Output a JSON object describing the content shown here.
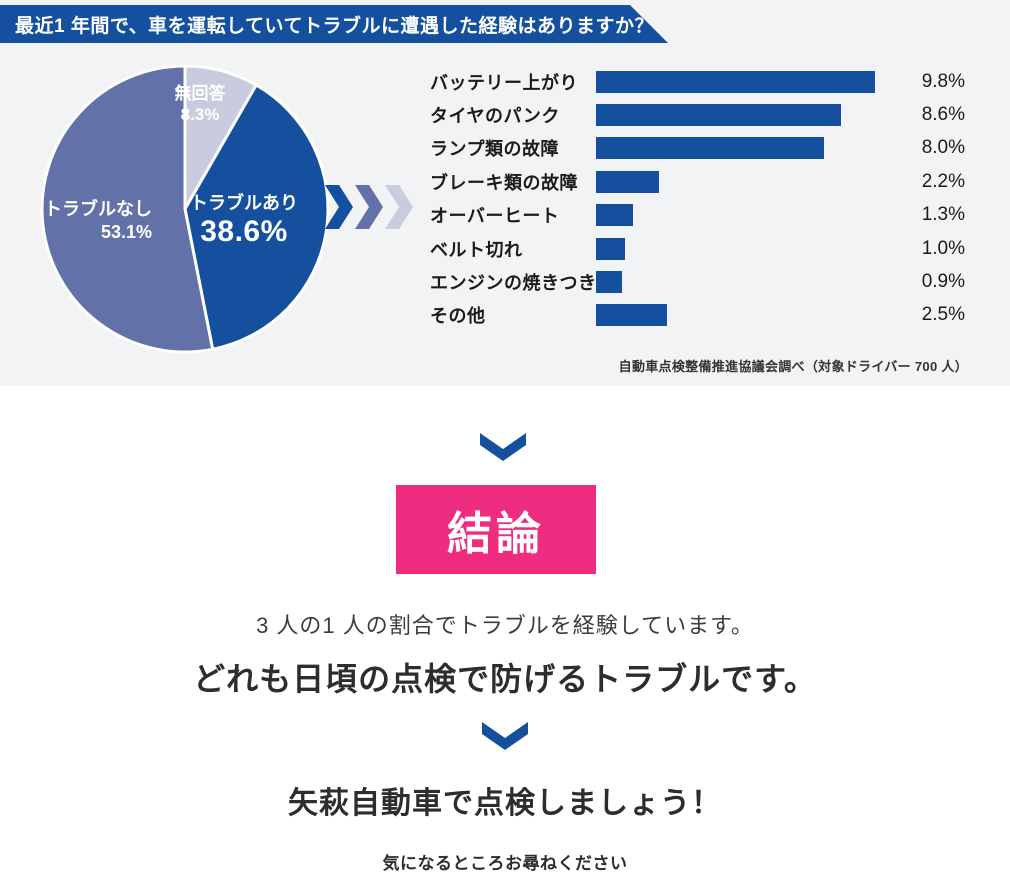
{
  "header": {
    "title": "最近1 年間で、車を運転していてトラブルに遭遇した経験はありますか？"
  },
  "colors": {
    "primary_blue": "#14509e",
    "slate_purple": "#6272a8",
    "lavender": "#c9ccdf",
    "accent_pink": "#ee2d81",
    "section_bg": "#f2f3f4"
  },
  "chart_data": [
    {
      "type": "pie",
      "title": "最近1年間で、車を運転していてトラブルに遭遇した経験はありますか？",
      "unit": "%",
      "start_angle_deg": 0,
      "direction": "clockwise_from_top",
      "slices": [
        {
          "label": "無回答",
          "value": 8.3,
          "display": "8.3%",
          "color": "#c9ccdf"
        },
        {
          "label": "トラブルあり",
          "value": 38.6,
          "display": "38.6%",
          "color": "#14509e"
        },
        {
          "label": "トラブルなし",
          "value": 53.1,
          "display": "53.1%",
          "color": "#6272a8"
        }
      ]
    },
    {
      "type": "bar",
      "orientation": "horizontal",
      "categories": [
        "バッテリー上がり",
        "タイヤのパンク",
        "ランプ類の故障",
        "ブレーキ類の故障",
        "オーバーヒート",
        "ベルト切れ",
        "エンジンの焼きつき",
        "その他"
      ],
      "values": [
        9.8,
        8.6,
        8.0,
        2.2,
        1.3,
        1.0,
        0.9,
        2.5
      ],
      "value_labels": [
        "9.8%",
        "8.6%",
        "8.0%",
        "2.2%",
        "1.3%",
        "1.0%",
        "0.9%",
        "2.5%"
      ],
      "bar_color": "#14509e",
      "xlim": [
        0,
        10
      ],
      "grid": false,
      "legend": false
    }
  ],
  "source_note": "自動車点検整備推進協議会調べ（対象ドライバー 700 人）",
  "conclusion": {
    "badge": "結論",
    "line1": "3 人の1 人の割合でトラブルを経験しています。",
    "line2": "どれも日頃の点検で防げるトラブルです。",
    "cta": "矢萩自動車で点検しましょう！",
    "footer": "気になるところお尋ねください"
  }
}
